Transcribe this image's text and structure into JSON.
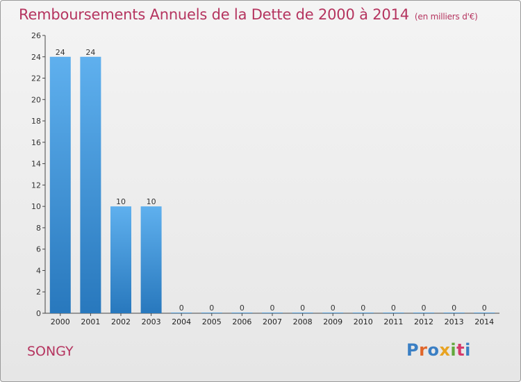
{
  "chart_data": {
    "type": "bar",
    "title": "Remboursements Annuels de la Dette de 2000 à 2014",
    "subtitle": "(en milliers d'€)",
    "categories": [
      "2000",
      "2001",
      "2002",
      "2003",
      "2004",
      "2005",
      "2006",
      "2007",
      "2008",
      "2009",
      "2010",
      "2011",
      "2012",
      "2013",
      "2014"
    ],
    "values": [
      24,
      24,
      10,
      10,
      0,
      0,
      0,
      0,
      0,
      0,
      0,
      0,
      0,
      0,
      0
    ],
    "ylim": [
      0,
      26
    ],
    "yticks": [
      0,
      2,
      4,
      6,
      8,
      10,
      12,
      14,
      16,
      18,
      20,
      22,
      24,
      26
    ],
    "grid": false,
    "bar_color": "#3f95d6"
  },
  "footer": {
    "commune": "SONGY",
    "logo_text": "Proxiti",
    "logo_colors": [
      "#3a7fc4",
      "#e0662a",
      "#3a7fc4",
      "#e8a321",
      "#63a83c",
      "#d63a6b",
      "#3a7fc4"
    ]
  },
  "colors": {
    "title": "#b5345f"
  }
}
